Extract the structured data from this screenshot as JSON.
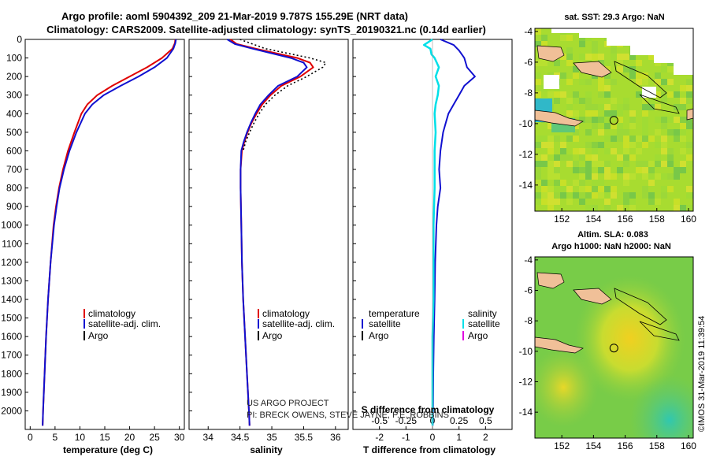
{
  "header": {
    "line1": "Argo profile: aoml 5904392_209 21-Mar-2019 9.787S 155.29E (NRT data)",
    "line2": "Climatology: CARS2009. Satellite-adjusted climatology: synTS_20190321.nc (0.14d earlier)"
  },
  "colors": {
    "climatology": "#e00000",
    "satellite": "#1010d0",
    "argo": "#000000",
    "sat_salinity": "#00e0e8",
    "argo_salinity": "#e000e0"
  },
  "credits": {
    "line1": "US ARGO PROJECT",
    "line2": "PI: BRECK OWENS, STEVE JAYNE, P.E. ROBBINS"
  },
  "watermark": "©IMOS 31-Mar-2019 11:39:54",
  "chart_data": [
    {
      "type": "line",
      "id": "temperature",
      "xlabel": "temperature (deg C)",
      "ylabel": "",
      "xlim": [
        -1,
        31
      ],
      "ylim": [
        2100,
        0
      ],
      "xticks": [
        "0",
        "5",
        "10",
        "15",
        "20",
        "25",
        "30"
      ],
      "xtick_values": [
        0,
        5,
        10,
        15,
        20,
        25,
        30
      ],
      "yticks": [
        "0",
        "100",
        "200",
        "300",
        "400",
        "500",
        "600",
        "700",
        "800",
        "900",
        "1000",
        "1100",
        "1200",
        "1300",
        "1400",
        "1500",
        "1600",
        "1700",
        "1800",
        "1900",
        "2000"
      ],
      "ytick_values": [
        0,
        100,
        200,
        300,
        400,
        500,
        600,
        700,
        800,
        900,
        1000,
        1100,
        1200,
        1300,
        1400,
        1500,
        1600,
        1700,
        1800,
        1900,
        2000
      ],
      "legend": [
        "climatology",
        "satellite-adj. clim.",
        "Argo"
      ],
      "series": [
        {
          "name": "climatology",
          "depth": [
            0,
            20,
            50,
            100,
            150,
            200,
            250,
            300,
            350,
            400,
            500,
            600,
            700,
            800,
            900,
            1000,
            1200,
            1400,
            1600,
            1800,
            2000,
            2080
          ],
          "values": [
            29.2,
            29.1,
            28.6,
            26.5,
            23.5,
            20.0,
            16.5,
            13.5,
            11.5,
            10.3,
            8.9,
            7.6,
            6.6,
            5.8,
            5.2,
            4.7,
            4.1,
            3.6,
            3.2,
            2.9,
            2.6,
            2.5
          ]
        },
        {
          "name": "satellite-adj. clim.",
          "depth": [
            0,
            20,
            50,
            100,
            150,
            200,
            250,
            300,
            350,
            400,
            500,
            600,
            700,
            800,
            900,
            1000,
            1200,
            1400,
            1600,
            1800,
            2000,
            2080
          ],
          "values": [
            29.3,
            29.2,
            28.8,
            27.5,
            25.0,
            21.8,
            18.2,
            14.8,
            12.5,
            11.0,
            9.3,
            7.9,
            6.8,
            5.9,
            5.3,
            4.8,
            4.1,
            3.6,
            3.2,
            2.9,
            2.6,
            2.5
          ]
        },
        {
          "name": "Argo",
          "depth": [],
          "values": []
        }
      ]
    },
    {
      "type": "line",
      "id": "salinity",
      "xlabel": "salinity",
      "xlim": [
        33.7,
        36.2
      ],
      "ylim": [
        2100,
        0
      ],
      "xticks": [
        "34",
        "34.5",
        "35",
        "35.5",
        "36"
      ],
      "xtick_values": [
        34,
        34.5,
        35,
        35.5,
        36
      ],
      "legend": [
        "climatology",
        "satellite-adj. clim.",
        "Argo"
      ],
      "series": [
        {
          "name": "climatology",
          "depth": [
            0,
            25,
            50,
            100,
            125,
            150,
            200,
            250,
            300,
            350,
            400,
            450,
            500,
            550,
            600,
            700,
            800,
            1000,
            1200,
            1400,
            1600,
            1800,
            2000,
            2080
          ],
          "values": [
            34.35,
            34.45,
            34.75,
            35.4,
            35.6,
            35.65,
            35.45,
            35.15,
            34.98,
            34.85,
            34.76,
            34.68,
            34.62,
            34.57,
            34.53,
            34.51,
            34.51,
            34.52,
            34.53,
            34.55,
            34.58,
            34.61,
            34.64,
            34.65
          ]
        },
        {
          "name": "satellite-adj. clim.",
          "depth": [
            0,
            25,
            50,
            100,
            125,
            150,
            200,
            250,
            300,
            350,
            400,
            450,
            500,
            550,
            600,
            700,
            800,
            1000,
            1200,
            1400,
            1600,
            1800,
            2000,
            2080
          ],
          "values": [
            34.3,
            34.42,
            34.7,
            35.3,
            35.5,
            35.55,
            35.4,
            35.1,
            34.95,
            34.82,
            34.74,
            34.67,
            34.61,
            34.56,
            34.52,
            34.51,
            34.51,
            34.52,
            34.53,
            34.55,
            34.58,
            34.61,
            34.64,
            34.65
          ]
        },
        {
          "name": "Argo",
          "depth": [],
          "values": []
        },
        {
          "name": "climatology dotted",
          "depth": [
            0,
            50,
            100,
            125,
            150,
            200,
            250,
            300,
            350,
            400,
            450,
            500,
            550,
            600
          ],
          "values": [
            34.5,
            34.9,
            35.6,
            35.85,
            35.8,
            35.55,
            35.25,
            35.05,
            34.9,
            34.8,
            34.72,
            34.65,
            34.59,
            34.55
          ]
        }
      ]
    },
    {
      "type": "line",
      "id": "difference",
      "xlabel": "T difference from climatology",
      "xlabel_top": "S difference from climatology",
      "xlim": [
        -3,
        3
      ],
      "xlim_top": [
        -0.75,
        0.75
      ],
      "ylim": [
        2100,
        0
      ],
      "xticks": [
        "-2",
        "-1",
        "0",
        "1",
        "2"
      ],
      "xtick_values": [
        -2,
        -1,
        0,
        1,
        2
      ],
      "xticks_top": [
        "-0.5",
        "-0.25",
        "0",
        "0.25",
        "0.5"
      ],
      "xtick_values_top": [
        -0.5,
        -0.25,
        0,
        0.25,
        0.5
      ],
      "legend_left_title": "temperature",
      "legend_right_title": "salinity",
      "legend_left": [
        "satellite",
        "Argo"
      ],
      "legend_right": [
        "satellite",
        "Argo"
      ],
      "series": [
        {
          "name": "temperature satellite",
          "depth": [
            0,
            30,
            60,
            100,
            150,
            200,
            250,
            300,
            350,
            400,
            450,
            500,
            550,
            600,
            700,
            800,
            900,
            1000,
            1200,
            1400,
            1600,
            1800,
            2000,
            2080
          ],
          "values": [
            0.3,
            0.8,
            1.0,
            1.2,
            1.3,
            1.6,
            1.2,
            1.0,
            0.8,
            0.6,
            0.5,
            0.4,
            0.35,
            0.3,
            0.25,
            0.3,
            0.2,
            0.15,
            0.1,
            0.08,
            0.05,
            0.03,
            0.02,
            0.01
          ]
        },
        {
          "name": "salinity satellite",
          "depth": [
            0,
            30,
            50,
            80,
            100,
            150,
            200,
            250,
            300,
            350,
            400,
            500,
            600,
            700,
            800,
            1000,
            1200,
            1400,
            1600,
            1800,
            2000,
            2080
          ],
          "values": [
            0.0,
            -0.08,
            -0.02,
            -0.01,
            0.02,
            0.06,
            0.03,
            0.06,
            0.05,
            0.03,
            0.02,
            0.03,
            0.02,
            0.02,
            0.02,
            0.01,
            0.01,
            0.01,
            0.0,
            0.0,
            0.0,
            0.0
          ]
        },
        {
          "name": "Argo",
          "depth": [],
          "values": []
        }
      ]
    },
    {
      "type": "heatmap",
      "id": "sst-map",
      "title": "sat. SST: 29.3 Argo: NaN",
      "xticks": [
        "152",
        "154",
        "156",
        "158",
        "160"
      ],
      "xtick_values": [
        152,
        154,
        156,
        158,
        160
      ],
      "yticks": [
        "-4",
        "-6",
        "-8",
        "-10",
        "-12",
        "-14"
      ],
      "ytick_values": [
        -4,
        -6,
        -8,
        -10,
        -12,
        -14
      ],
      "xlim": [
        150.3,
        160.3
      ],
      "ylim": [
        -15.7,
        -3.8
      ],
      "marker": {
        "lon": 155.29,
        "lat": -9.787
      }
    },
    {
      "type": "heatmap",
      "id": "sla-map",
      "title": "Altim. SLA: 0.083",
      "subtitle": "Argo h1000: NaN h2000: NaN",
      "xticks": [
        "152",
        "154",
        "156",
        "158",
        "160"
      ],
      "xtick_values": [
        152,
        154,
        156,
        158,
        160
      ],
      "yticks": [
        "-4",
        "-6",
        "-8",
        "-10",
        "-12",
        "-14"
      ],
      "ytick_values": [
        -4,
        -6,
        -8,
        -10,
        -12,
        -14
      ],
      "xlim": [
        150.3,
        160.3
      ],
      "ylim": [
        -15.7,
        -3.8
      ],
      "marker": {
        "lon": 155.29,
        "lat": -9.787
      }
    }
  ]
}
